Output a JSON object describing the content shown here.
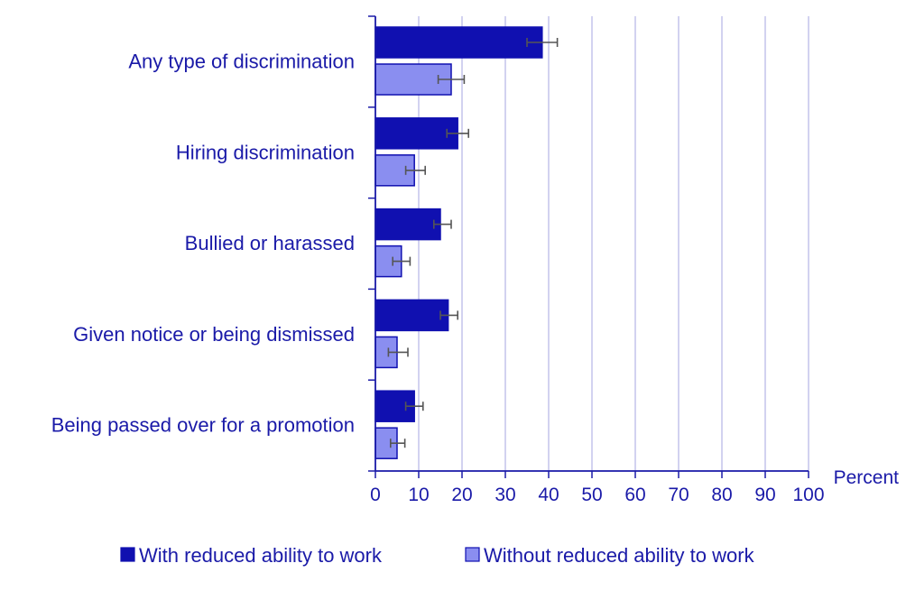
{
  "chart_data": {
    "type": "bar",
    "orientation": "horizontal",
    "categories": [
      "Any type of discrimination",
      "Hiring discrimination",
      "Bullied or harassed",
      "Given notice or being dismissed",
      "Being passed over for a promotion"
    ],
    "series": [
      {
        "name": "With reduced ability to work",
        "color": "#1010b0",
        "values": [
          38.5,
          19,
          15,
          16.8,
          9
        ],
        "error_low": [
          35,
          16.5,
          13.5,
          15,
          7
        ],
        "error_high": [
          42,
          21.5,
          17.5,
          19,
          11
        ]
      },
      {
        "name": "Without reduced ability to work",
        "color": "#8a8ef0",
        "values": [
          17.5,
          9,
          6,
          5,
          5
        ],
        "error_low": [
          14.5,
          7,
          4,
          3,
          3.5
        ],
        "error_high": [
          20.5,
          11.5,
          8,
          7.5,
          6.8
        ]
      }
    ],
    "xlim": [
      0,
      100
    ],
    "xticks": [
      "0",
      "10",
      "20",
      "30",
      "40",
      "50",
      "60",
      "70",
      "80",
      "90",
      "100"
    ],
    "xlabel": "Percent",
    "grid": true,
    "legend_position": "bottom"
  }
}
